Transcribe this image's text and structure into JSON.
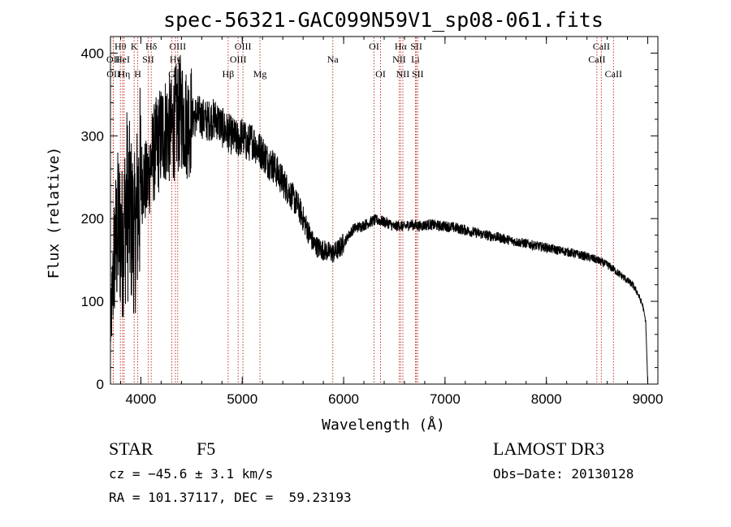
{
  "chart_data": {
    "type": "line",
    "title": "spec-56321-GAC099N59V1_sp08-061.fits",
    "xlabel": "Wavelength (Å)",
    "ylabel": "Flux (relative)",
    "xlim": [
      3700,
      9100
    ],
    "ylim": [
      0,
      420
    ],
    "xticks": [
      4000,
      5000,
      6000,
      7000,
      8000,
      9000
    ],
    "yticks": [
      0,
      100,
      200,
      300,
      400
    ],
    "grid": false,
    "series": [
      {
        "name": "flux",
        "x": [
          3700,
          3740,
          3780,
          3820,
          3860,
          3900,
          3940,
          3980,
          4020,
          4060,
          4100,
          4150,
          4200,
          4250,
          4300,
          4350,
          4400,
          4450,
          4500,
          4550,
          4600,
          4650,
          4700,
          4750,
          4800,
          4850,
          4900,
          4950,
          5000,
          5050,
          5100,
          5150,
          5200,
          5250,
          5300,
          5350,
          5400,
          5450,
          5500,
          5550,
          5600,
          5650,
          5700,
          5750,
          5800,
          5850,
          5900,
          5950,
          6000,
          6050,
          6100,
          6150,
          6200,
          6250,
          6300,
          6350,
          6400,
          6450,
          6500,
          6550,
          6600,
          6650,
          6700,
          6750,
          6800,
          6850,
          6900,
          6950,
          7000,
          7100,
          7200,
          7300,
          7400,
          7500,
          7600,
          7700,
          7800,
          7900,
          8000,
          8100,
          8200,
          8300,
          8400,
          8450,
          8500,
          8550,
          8600,
          8650,
          8700,
          8750,
          8800,
          8850,
          8900,
          8950,
          8980,
          9000
        ],
        "y": [
          60,
          160,
          190,
          170,
          220,
          200,
          180,
          230,
          250,
          240,
          270,
          285,
          300,
          310,
          305,
          320,
          330,
          315,
          320,
          325,
          322,
          318,
          320,
          320,
          310,
          305,
          300,
          295,
          300,
          290,
          295,
          285,
          280,
          270,
          265,
          255,
          245,
          235,
          225,
          215,
          200,
          185,
          170,
          165,
          162,
          160,
          158,
          163,
          170,
          180,
          188,
          190,
          192,
          195,
          198,
          198,
          196,
          194,
          190,
          192,
          190,
          193,
          192,
          191,
          192,
          193,
          192,
          191,
          191,
          189,
          186,
          183,
          180,
          178,
          175,
          172,
          170,
          167,
          165,
          162,
          160,
          157,
          154,
          152,
          150,
          147,
          144,
          140,
          135,
          130,
          125,
          120,
          110,
          95,
          75,
          0
        ]
      }
    ],
    "lines": [
      {
        "label": "OII",
        "x": 3727,
        "row": 1
      },
      {
        "label": "OII",
        "x": 3729,
        "row": 2
      },
      {
        "label": "Hθ",
        "x": 3798,
        "row": 0
      },
      {
        "label": "HeI",
        "x": 3820,
        "row": 1
      },
      {
        "label": "Hη",
        "x": 3835,
        "row": 2
      },
      {
        "label": "K",
        "x": 3934,
        "row": 0
      },
      {
        "label": "SII",
        "x": 4072,
        "row": 1
      },
      {
        "label": "H",
        "x": 3969,
        "row": 2
      },
      {
        "label": "Hδ",
        "x": 4102,
        "row": 0
      },
      {
        "label": "OIII",
        "x": 4363,
        "row": 0
      },
      {
        "label": "Hγ",
        "x": 4340,
        "row": 1
      },
      {
        "label": "G",
        "x": 4305,
        "row": 2
      },
      {
        "label": "Hβ",
        "x": 4861,
        "row": 2
      },
      {
        "label": "OIII",
        "x": 5007,
        "row": 0
      },
      {
        "label": "OIII",
        "x": 4959,
        "row": 1
      },
      {
        "label": "Mg",
        "x": 5175,
        "row": 2
      },
      {
        "label": "Na",
        "x": 5893,
        "row": 1
      },
      {
        "label": "OI",
        "x": 6300,
        "row": 0
      },
      {
        "label": "OI",
        "x": 6364,
        "row": 2
      },
      {
        "label": "Hα",
        "x": 6563,
        "row": 0
      },
      {
        "label": "NII",
        "x": 6548,
        "row": 1
      },
      {
        "label": "NII",
        "x": 6584,
        "row": 2
      },
      {
        "label": "SII",
        "x": 6717,
        "row": 0
      },
      {
        "label": "Li",
        "x": 6708,
        "row": 1
      },
      {
        "label": "SII",
        "x": 6731,
        "row": 2
      },
      {
        "label": "CaII",
        "x": 8542,
        "row": 0
      },
      {
        "label": "CaII",
        "x": 8498,
        "row": 1
      },
      {
        "label": "CaII",
        "x": 8662,
        "row": 2
      }
    ]
  },
  "footer": {
    "class": "STAR",
    "subclass": "F5",
    "survey": "LAMOST DR3",
    "cz": "cz = −45.6 ± 3.1 km/s",
    "obs_date": "Obs−Date: 20130128",
    "radec": "RA = 101.37117, DEC =  59.23193"
  }
}
